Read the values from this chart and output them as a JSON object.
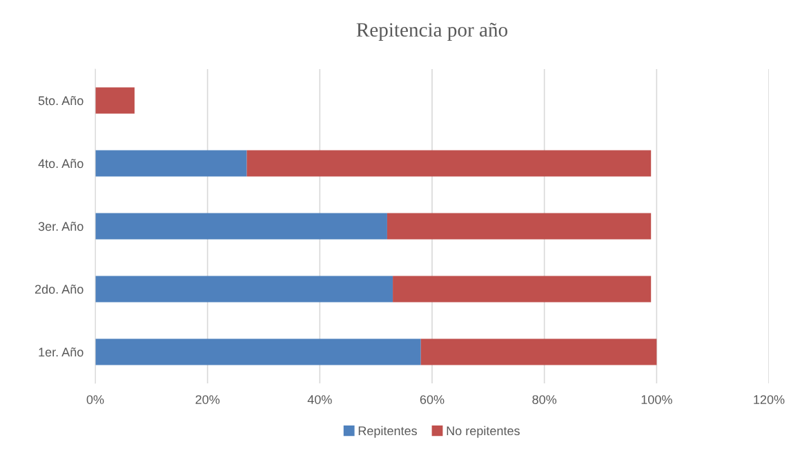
{
  "chart_data": {
    "type": "bar",
    "title": "Repitencia por año",
    "orientation": "horizontal",
    "stacked": true,
    "categories": [
      "5to. Año",
      "4to. Año",
      "3er. Año",
      "2do. Año",
      "1er. Año"
    ],
    "series": [
      {
        "name": "Repitentes",
        "color": "#4f81bd",
        "values": [
          0,
          27,
          52,
          53,
          58
        ]
      },
      {
        "name": "No repitentes",
        "color": "#c0504d",
        "values": [
          7,
          72,
          47,
          46,
          42
        ]
      }
    ],
    "xlim": [
      0,
      120
    ],
    "xticks": [
      {
        "value": 0,
        "label": "0%"
      },
      {
        "value": 20,
        "label": "20%"
      },
      {
        "value": 40,
        "label": "40%"
      },
      {
        "value": 60,
        "label": "60%"
      },
      {
        "value": 80,
        "label": "80%"
      },
      {
        "value": 100,
        "label": "100%"
      },
      {
        "value": 120,
        "label": "120%"
      }
    ],
    "grid": "x",
    "legend": "bottom"
  }
}
